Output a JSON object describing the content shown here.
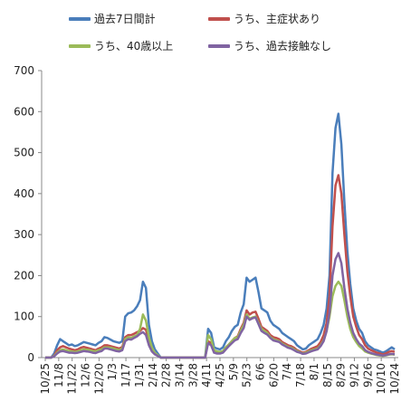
{
  "chart_data": {
    "type": "line",
    "ylim": [
      0,
      700
    ],
    "yticks": [
      0,
      100,
      200,
      300,
      400,
      500,
      600,
      700
    ],
    "legend_position": "top",
    "grid": false,
    "x_tick_labels": [
      "10/25",
      "11/8",
      "11/22",
      "12/6",
      "12/20",
      "1/3",
      "1/17",
      "1/31",
      "2/14",
      "2/28",
      "3/14",
      "3/28",
      "4/11",
      "4/25",
      "5/9",
      "5/23",
      "6/6",
      "6/20",
      "7/4",
      "7/18",
      "8/1",
      "8/15",
      "8/29",
      "9/12",
      "9/26",
      "10/10",
      "10/24"
    ],
    "series": [
      {
        "name": "過去7日間計",
        "color": "#4a7ebb",
        "values": [
          0,
          0,
          0,
          10,
          30,
          45,
          40,
          35,
          30,
          32,
          28,
          30,
          34,
          38,
          36,
          34,
          32,
          30,
          36,
          40,
          50,
          48,
          44,
          40,
          38,
          36,
          40,
          100,
          108,
          110,
          115,
          125,
          140,
          185,
          170,
          80,
          40,
          20,
          10,
          0,
          0,
          0,
          0,
          0,
          0,
          0,
          0,
          0,
          0,
          0,
          0,
          0,
          0,
          0,
          0,
          70,
          60,
          25,
          22,
          20,
          25,
          40,
          50,
          65,
          75,
          80,
          110,
          130,
          195,
          185,
          190,
          195,
          160,
          120,
          115,
          110,
          90,
          80,
          75,
          70,
          60,
          55,
          50,
          45,
          40,
          30,
          25,
          20,
          22,
          30,
          35,
          40,
          45,
          60,
          80,
          120,
          200,
          450,
          560,
          595,
          520,
          380,
          260,
          180,
          120,
          90,
          70,
          60,
          40,
          30,
          25,
          20,
          18,
          15,
          12,
          15,
          20,
          25,
          20
        ]
      },
      {
        "name": "うち、主症状あり",
        "color": "#c0504d",
        "values": [
          0,
          0,
          0,
          5,
          18,
          25,
          28,
          25,
          22,
          20,
          18,
          20,
          24,
          26,
          24,
          22,
          20,
          18,
          22,
          25,
          30,
          30,
          28,
          26,
          24,
          22,
          26,
          50,
          55,
          55,
          58,
          62,
          65,
          72,
          68,
          40,
          20,
          10,
          5,
          0,
          0,
          0,
          0,
          0,
          0,
          0,
          0,
          0,
          0,
          0,
          0,
          0,
          0,
          0,
          0,
          40,
          35,
          15,
          12,
          12,
          15,
          25,
          32,
          40,
          48,
          52,
          70,
          85,
          115,
          105,
          110,
          112,
          95,
          75,
          70,
          65,
          55,
          50,
          48,
          45,
          38,
          34,
          30,
          28,
          24,
          18,
          15,
          12,
          14,
          18,
          22,
          25,
          28,
          38,
          55,
          85,
          150,
          320,
          420,
          445,
          400,
          300,
          210,
          150,
          100,
          75,
          55,
          45,
          30,
          22,
          18,
          15,
          12,
          10,
          8,
          10,
          14,
          16,
          14
        ]
      },
      {
        "name": "うち、40歳以上",
        "color": "#9bbb59",
        "values": [
          0,
          0,
          0,
          4,
          12,
          18,
          20,
          18,
          16,
          15,
          14,
          15,
          18,
          20,
          19,
          18,
          16,
          15,
          18,
          20,
          25,
          25,
          24,
          22,
          20,
          18,
          22,
          45,
          50,
          48,
          52,
          55,
          70,
          105,
          90,
          50,
          25,
          12,
          6,
          0,
          0,
          0,
          0,
          0,
          0,
          0,
          0,
          0,
          0,
          0,
          0,
          0,
          0,
          0,
          0,
          55,
          45,
          18,
          15,
          14,
          16,
          25,
          32,
          40,
          48,
          50,
          65,
          80,
          105,
          95,
          98,
          100,
          85,
          70,
          65,
          60,
          50,
          45,
          42,
          40,
          34,
          30,
          26,
          24,
          20,
          16,
          13,
          10,
          12,
          15,
          18,
          20,
          22,
          30,
          42,
          65,
          100,
          150,
          175,
          185,
          175,
          140,
          100,
          70,
          50,
          38,
          28,
          22,
          15,
          12,
          10,
          8,
          6,
          5,
          4,
          5,
          7,
          8,
          7
        ]
      },
      {
        "name": "うち、過去接触なし",
        "color": "#8064a2",
        "values": [
          0,
          0,
          0,
          3,
          10,
          15,
          16,
          14,
          12,
          12,
          11,
          12,
          14,
          16,
          15,
          14,
          12,
          11,
          14,
          16,
          22,
          22,
          20,
          18,
          16,
          15,
          18,
          40,
          45,
          44,
          48,
          52,
          58,
          62,
          55,
          30,
          15,
          8,
          4,
          0,
          0,
          0,
          0,
          0,
          0,
          0,
          0,
          0,
          0,
          0,
          0,
          0,
          0,
          0,
          0,
          35,
          30,
          12,
          10,
          10,
          12,
          20,
          28,
          35,
          42,
          45,
          60,
          72,
          100,
          92,
          96,
          98,
          82,
          65,
          60,
          56,
          48,
          42,
          40,
          38,
          32,
          28,
          24,
          22,
          18,
          14,
          12,
          9,
          10,
          13,
          16,
          18,
          20,
          28,
          40,
          65,
          110,
          200,
          240,
          255,
          230,
          170,
          120,
          85,
          60,
          45,
          34,
          28,
          18,
          14,
          11,
          9,
          7,
          6,
          5,
          6,
          8,
          9,
          8
        ]
      }
    ]
  }
}
